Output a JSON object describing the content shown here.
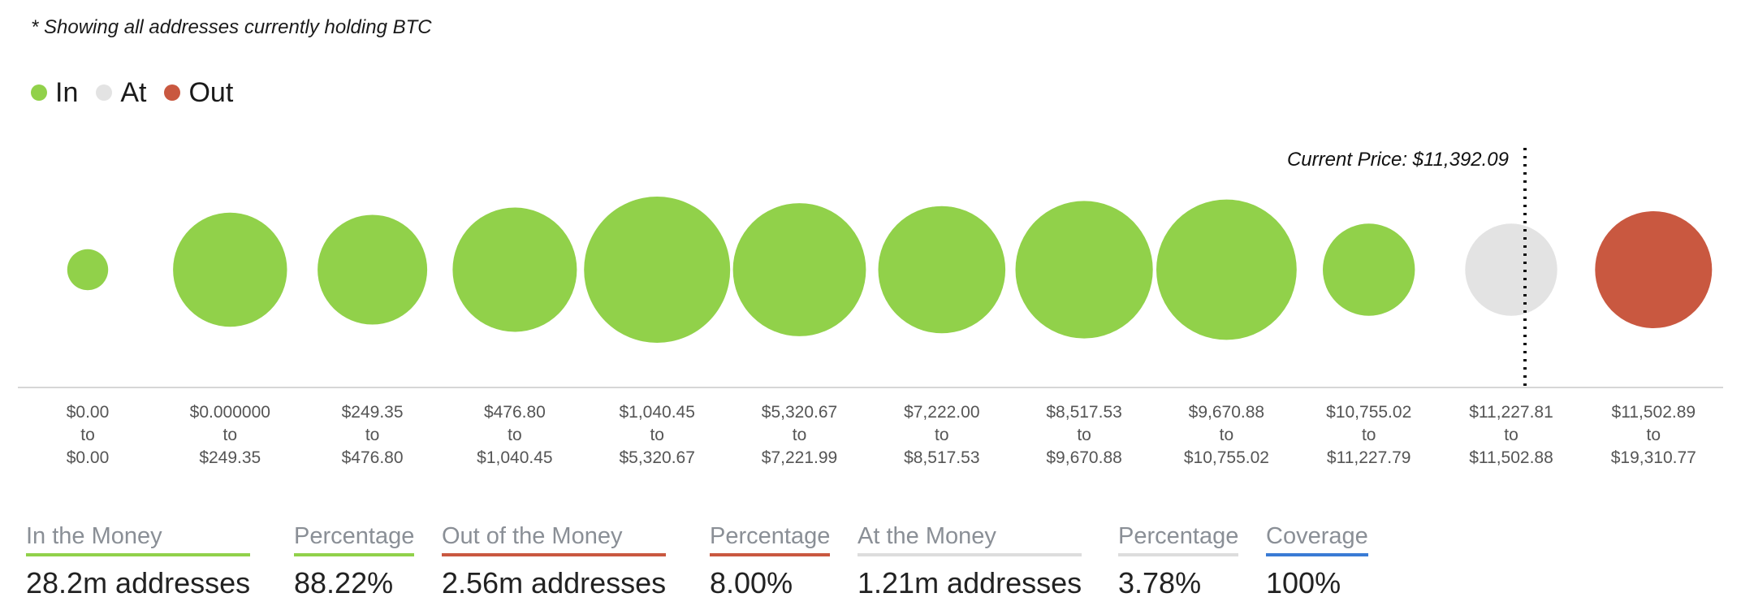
{
  "note": "* Showing all addresses currently holding BTC",
  "legend": [
    {
      "label": "In",
      "color": "#91d14a"
    },
    {
      "label": "At",
      "color": "#e3e3e3"
    },
    {
      "label": "Out",
      "color": "#c95840"
    }
  ],
  "chart_data": {
    "type": "bubble",
    "current_price_label": "Current Price: $11,392.09",
    "current_price": 11392.09,
    "categories": [
      {
        "from": "$0.00",
        "to": "$0.00",
        "status": "In",
        "size": 0.28
      },
      {
        "from": "$0.000000",
        "to": "$249.35",
        "status": "In",
        "size": 0.78
      },
      {
        "from": "$249.35",
        "to": "$476.80",
        "status": "In",
        "size": 0.75
      },
      {
        "from": "$476.80",
        "to": "$1,040.45",
        "status": "In",
        "size": 0.85
      },
      {
        "from": "$1,040.45",
        "to": "$5,320.67",
        "status": "In",
        "size": 1.0
      },
      {
        "from": "$5,320.67",
        "to": "$7,221.99",
        "status": "In",
        "size": 0.91
      },
      {
        "from": "$7,222.00",
        "to": "$8,517.53",
        "status": "In",
        "size": 0.87
      },
      {
        "from": "$8,517.53",
        "to": "$9,670.88",
        "status": "In",
        "size": 0.94
      },
      {
        "from": "$9,670.88",
        "to": "$10,755.02",
        "status": "In",
        "size": 0.96
      },
      {
        "from": "$10,755.02",
        "to": "$11,227.79",
        "status": "In",
        "size": 0.63
      },
      {
        "from": "$11,227.81",
        "to": "$11,502.88",
        "status": "At",
        "size": 0.63
      },
      {
        "from": "$11,502.89",
        "to": "$19,310.77",
        "status": "Out",
        "size": 0.8
      }
    ],
    "bucket_separator": "to"
  },
  "stats": [
    {
      "label": "In the Money",
      "value": "28.2m addresses",
      "color": "#91d14a"
    },
    {
      "label": "Percentage",
      "value": "88.22%",
      "color": "#91d14a"
    },
    {
      "label": "Out of the Money",
      "value": "2.56m addresses",
      "color": "#c95840"
    },
    {
      "label": "Percentage",
      "value": "8.00%",
      "color": "#c95840"
    },
    {
      "label": "At the Money",
      "value": "1.21m addresses",
      "color": "#dddddd"
    },
    {
      "label": "Percentage",
      "value": "3.78%",
      "color": "#dddddd"
    },
    {
      "label": "Coverage",
      "value": "100%",
      "color": "#3a7bd5"
    }
  ]
}
